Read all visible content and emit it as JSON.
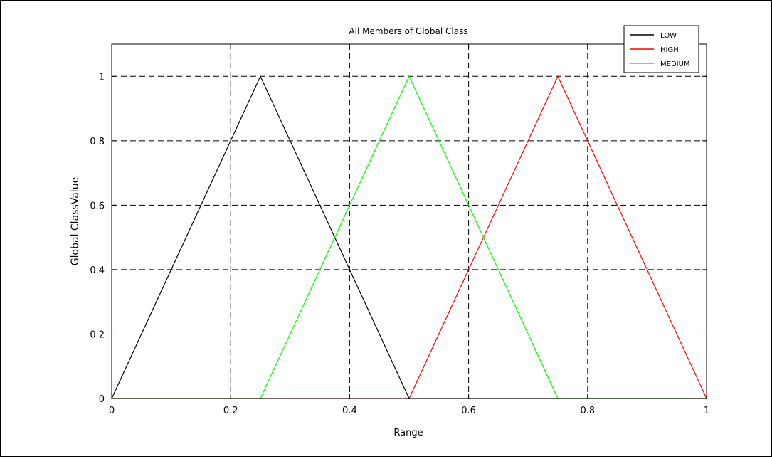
{
  "chart_data": {
    "type": "line",
    "title": "All Members of Global Class",
    "xlabel": "Range",
    "ylabel": "Global ClassValue",
    "xlim": [
      0,
      1
    ],
    "ylim": [
      0,
      1.1
    ],
    "xticks": [
      0,
      0.2,
      0.4,
      0.6,
      0.8,
      1
    ],
    "yticks": [
      0,
      0.2,
      0.4,
      0.6,
      0.8,
      1
    ],
    "xtick_labels": [
      "0",
      "0.2",
      "0.4",
      "0.6",
      "0.8",
      "1"
    ],
    "ytick_labels": [
      "0",
      "0.2",
      "0.4",
      "0.6",
      "0.8",
      "1"
    ],
    "grid": true,
    "grid_style": "dashed",
    "legend_position": "top-right",
    "series": [
      {
        "name": "LOW",
        "color": "#000000",
        "x": [
          0,
          0.25,
          0.5,
          0.75,
          1
        ],
        "y": [
          0,
          1,
          0,
          0,
          0
        ]
      },
      {
        "name": "HIGH",
        "color": "#ff0000",
        "x": [
          0,
          0.5,
          0.75,
          1
        ],
        "y": [
          0,
          0,
          1,
          0
        ]
      },
      {
        "name": "MEDIUM",
        "color": "#00ff00",
        "x": [
          0,
          0.25,
          0.5,
          0.75,
          1
        ],
        "y": [
          0,
          0,
          1,
          0,
          0
        ]
      }
    ]
  }
}
